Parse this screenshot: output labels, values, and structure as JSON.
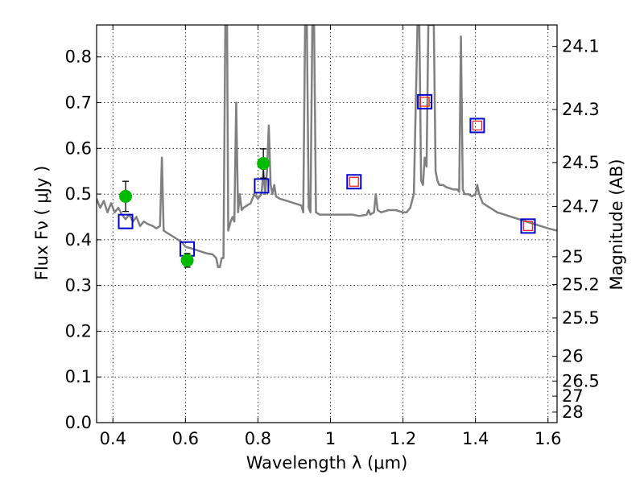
{
  "chart_data": {
    "type": "line",
    "xlabel": "Wavelength  λ (μm)",
    "ylabel": "Flux  Fν  ( μJy )",
    "ylabel_right": "Magnitude (AB)",
    "xlim": [
      0.355,
      1.625
    ],
    "ylim": [
      0.0,
      0.87
    ],
    "grid": true,
    "x_ticks": [
      0.4,
      0.6,
      0.8,
      1.0,
      1.2,
      1.4,
      1.6
    ],
    "x_tick_labels": [
      "0.4",
      "0.6",
      "0.8",
      "1",
      "1.2",
      "1.4",
      "1.6"
    ],
    "y_ticks": [
      0.0,
      0.1,
      0.2,
      0.3,
      0.4,
      0.5,
      0.6,
      0.7,
      0.8
    ],
    "y_tick_labels": [
      "0.0",
      "0.1",
      "0.2",
      "0.3",
      "0.4",
      "0.5",
      "0.6",
      "0.7",
      "0.8"
    ],
    "right_ticks": [
      {
        "label": "24.1",
        "flux": 0.823
      },
      {
        "label": "24.3",
        "flux": 0.685
      },
      {
        "label": "24.5",
        "flux": 0.569
      },
      {
        "label": "24.7",
        "flux": 0.473
      },
      {
        "label": "25",
        "flux": 0.363
      },
      {
        "label": "25.2",
        "flux": 0.302
      },
      {
        "label": "25.5",
        "flux": 0.229
      },
      {
        "label": "26",
        "flux": 0.145
      },
      {
        "label": "26.5",
        "flux": 0.091
      },
      {
        "label": "27",
        "flux": 0.058
      },
      {
        "label": "28",
        "flux": 0.023
      }
    ],
    "colors": {
      "spectrum": "#808080",
      "observed": "#00bb00",
      "model_box": "#0000cc",
      "model_inner": "#ee2222"
    },
    "spectrum": [
      [
        0.355,
        0.49
      ],
      [
        0.365,
        0.47
      ],
      [
        0.375,
        0.485
      ],
      [
        0.385,
        0.46
      ],
      [
        0.395,
        0.48
      ],
      [
        0.405,
        0.46
      ],
      [
        0.415,
        0.47
      ],
      [
        0.425,
        0.455
      ],
      [
        0.435,
        0.445
      ],
      [
        0.445,
        0.455
      ],
      [
        0.455,
        0.44
      ],
      [
        0.465,
        0.45
      ],
      [
        0.475,
        0.43
      ],
      [
        0.485,
        0.44
      ],
      [
        0.495,
        0.435
      ],
      [
        0.51,
        0.43
      ],
      [
        0.52,
        0.425
      ],
      [
        0.53,
        0.43
      ],
      [
        0.535,
        0.58
      ],
      [
        0.54,
        0.42
      ],
      [
        0.55,
        0.415
      ],
      [
        0.56,
        0.41
      ],
      [
        0.57,
        0.405
      ],
      [
        0.58,
        0.4
      ],
      [
        0.59,
        0.395
      ],
      [
        0.6,
        0.385
      ],
      [
        0.62,
        0.38
      ],
      [
        0.64,
        0.375
      ],
      [
        0.66,
        0.37
      ],
      [
        0.675,
        0.368
      ],
      [
        0.685,
        0.36
      ],
      [
        0.69,
        0.34
      ],
      [
        0.695,
        0.34
      ],
      [
        0.7,
        0.36
      ],
      [
        0.705,
        0.36
      ],
      [
        0.71,
        0.87
      ],
      [
        0.715,
        0.87
      ],
      [
        0.718,
        0.42
      ],
      [
        0.725,
        0.44
      ],
      [
        0.73,
        0.45
      ],
      [
        0.735,
        0.44
      ],
      [
        0.74,
        0.7
      ],
      [
        0.745,
        0.46
      ],
      [
        0.75,
        0.5
      ],
      [
        0.755,
        0.465
      ],
      [
        0.76,
        0.47
      ],
      [
        0.77,
        0.475
      ],
      [
        0.78,
        0.48
      ],
      [
        0.79,
        0.5
      ],
      [
        0.8,
        0.49
      ],
      [
        0.81,
        0.5
      ],
      [
        0.815,
        0.55
      ],
      [
        0.82,
        0.5
      ],
      [
        0.825,
        0.55
      ],
      [
        0.83,
        0.65
      ],
      [
        0.835,
        0.52
      ],
      [
        0.84,
        0.5
      ],
      [
        0.845,
        0.52
      ],
      [
        0.85,
        0.495
      ],
      [
        0.86,
        0.49
      ],
      [
        0.88,
        0.485
      ],
      [
        0.9,
        0.48
      ],
      [
        0.92,
        0.475
      ],
      [
        0.925,
        0.46
      ],
      [
        0.93,
        0.87
      ],
      [
        0.935,
        0.87
      ],
      [
        0.94,
        0.47
      ],
      [
        0.945,
        0.46
      ],
      [
        0.95,
        0.87
      ],
      [
        0.955,
        0.87
      ],
      [
        0.96,
        0.46
      ],
      [
        0.97,
        0.455
      ],
      [
        0.98,
        0.455
      ],
      [
        1.0,
        0.455
      ],
      [
        1.02,
        0.455
      ],
      [
        1.04,
        0.455
      ],
      [
        1.06,
        0.455
      ],
      [
        1.08,
        0.452
      ],
      [
        1.1,
        0.455
      ],
      [
        1.105,
        0.465
      ],
      [
        1.11,
        0.455
      ],
      [
        1.12,
        0.46
      ],
      [
        1.125,
        0.5
      ],
      [
        1.13,
        0.465
      ],
      [
        1.14,
        0.46
      ],
      [
        1.16,
        0.465
      ],
      [
        1.18,
        0.465
      ],
      [
        1.2,
        0.46
      ],
      [
        1.21,
        0.46
      ],
      [
        1.22,
        0.47
      ],
      [
        1.23,
        0.5
      ],
      [
        1.24,
        0.87
      ],
      [
        1.245,
        0.87
      ],
      [
        1.25,
        0.53
      ],
      [
        1.255,
        0.52
      ],
      [
        1.26,
        0.58
      ],
      [
        1.265,
        0.56
      ],
      [
        1.27,
        0.87
      ],
      [
        1.28,
        0.87
      ],
      [
        1.285,
        0.87
      ],
      [
        1.29,
        0.55
      ],
      [
        1.295,
        0.53
      ],
      [
        1.3,
        0.52
      ],
      [
        1.31,
        0.52
      ],
      [
        1.32,
        0.515
      ],
      [
        1.34,
        0.51
      ],
      [
        1.35,
        0.51
      ],
      [
        1.355,
        0.505
      ],
      [
        1.36,
        0.845
      ],
      [
        1.365,
        0.51
      ],
      [
        1.37,
        0.5
      ],
      [
        1.38,
        0.5
      ],
      [
        1.39,
        0.495
      ],
      [
        1.4,
        0.5
      ],
      [
        1.405,
        0.52
      ],
      [
        1.41,
        0.5
      ],
      [
        1.42,
        0.48
      ],
      [
        1.43,
        0.475
      ],
      [
        1.44,
        0.47
      ],
      [
        1.46,
        0.46
      ],
      [
        1.48,
        0.455
      ],
      [
        1.5,
        0.45
      ],
      [
        1.52,
        0.445
      ],
      [
        1.54,
        0.44
      ],
      [
        1.56,
        0.435
      ],
      [
        1.58,
        0.43
      ],
      [
        1.6,
        0.425
      ],
      [
        1.625,
        0.42
      ]
    ],
    "observed": [
      {
        "x": 0.435,
        "y": 0.495,
        "err": 0.033
      },
      {
        "x": 0.605,
        "y": 0.355,
        "err": 0.015
      },
      {
        "x": 0.815,
        "y": 0.567,
        "err": 0.032
      }
    ],
    "model_points": [
      {
        "x": 0.435,
        "y": 0.44,
        "inner": false
      },
      {
        "x": 0.605,
        "y": 0.38,
        "inner": false
      },
      {
        "x": 0.81,
        "y": 0.518,
        "inner": false
      },
      {
        "x": 1.065,
        "y": 0.527,
        "inner": true
      },
      {
        "x": 1.26,
        "y": 0.702,
        "inner": true
      },
      {
        "x": 1.405,
        "y": 0.65,
        "inner": true
      },
      {
        "x": 1.545,
        "y": 0.43,
        "inner": true
      }
    ]
  }
}
